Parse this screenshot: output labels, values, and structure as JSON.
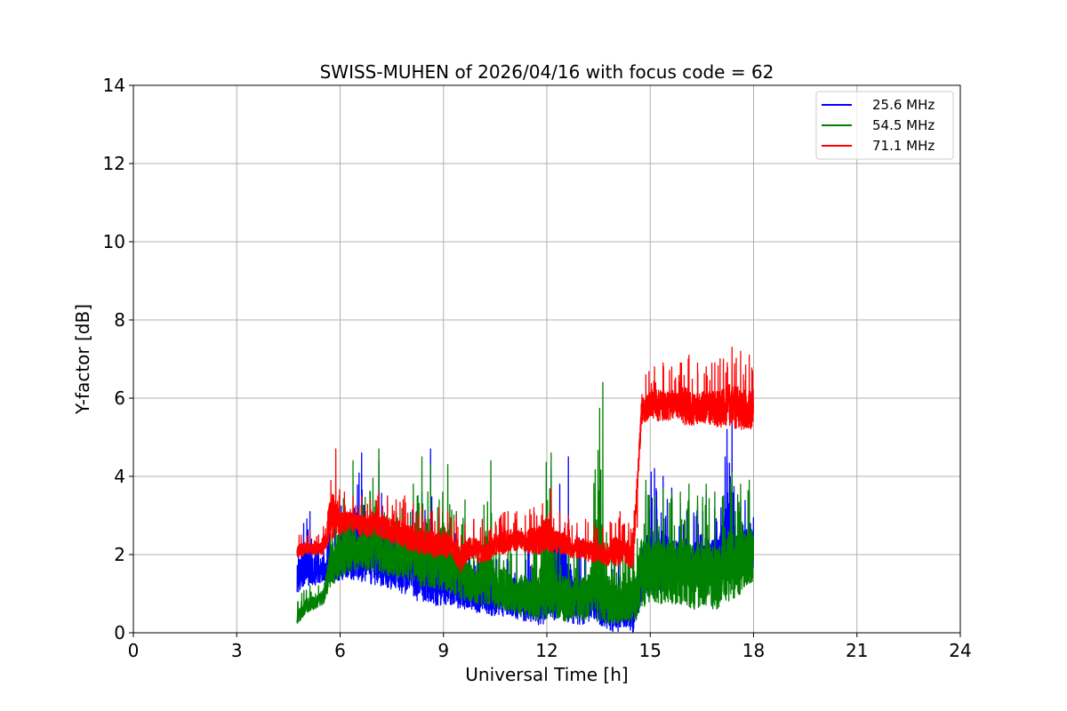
{
  "chart_data": {
    "type": "line",
    "title": "SWISS-MUHEN of 2026/04/16 with focus code = 62",
    "xlabel": "Universal Time [h]",
    "ylabel": "Y-factor [dB]",
    "xlim": [
      0,
      24
    ],
    "ylim": [
      0,
      14
    ],
    "xticks": [
      0,
      3,
      6,
      9,
      12,
      15,
      18,
      21,
      24
    ],
    "yticks": [
      0,
      2,
      4,
      6,
      8,
      10,
      12,
      14
    ],
    "grid": true,
    "legend_position": "top-right",
    "series": [
      {
        "name": "25.6 MHz",
        "color": "#0000ff",
        "x": [
          4.75,
          5.0,
          5.25,
          5.5,
          5.75,
          6.0,
          6.25,
          6.5,
          6.75,
          7.0,
          7.25,
          7.5,
          7.75,
          8.0,
          8.25,
          8.5,
          8.75,
          9.0,
          9.25,
          9.5,
          9.75,
          10.0,
          10.25,
          10.5,
          10.75,
          11.0,
          11.25,
          11.5,
          11.75,
          12.0,
          12.25,
          12.5,
          12.75,
          13.0,
          13.25,
          13.5,
          13.75,
          14.0,
          14.25,
          14.5,
          14.75,
          15.0,
          15.25,
          15.5,
          15.75,
          16.0,
          16.25,
          16.5,
          16.75,
          17.0,
          17.25,
          17.5,
          17.75,
          18.0
        ],
        "min": [
          1.0,
          1.2,
          1.2,
          1.3,
          1.3,
          1.3,
          1.4,
          1.3,
          1.3,
          1.2,
          1.2,
          1.1,
          1.0,
          1.0,
          0.8,
          0.8,
          0.7,
          0.7,
          0.7,
          0.6,
          0.6,
          0.5,
          0.5,
          0.4,
          0.4,
          0.4,
          0.3,
          0.3,
          0.2,
          0.2,
          0.3,
          0.3,
          0.2,
          0.2,
          0.3,
          0.2,
          0.1,
          0.0,
          0.1,
          0.0,
          0.8,
          0.9,
          1.0,
          1.1,
          1.2,
          1.2,
          1.2,
          1.3,
          1.3,
          1.4,
          1.5,
          1.4,
          1.5,
          1.5
        ],
        "max": [
          2.3,
          3.1,
          2.5,
          2.5,
          2.6,
          3.4,
          3.2,
          4.6,
          3.3,
          4.4,
          3.4,
          3.1,
          3.2,
          3.0,
          3.6,
          4.7,
          3.0,
          2.6,
          3.0,
          2.5,
          2.3,
          2.1,
          2.0,
          2.2,
          2.0,
          2.3,
          2.2,
          2.3,
          1.9,
          4.2,
          3.8,
          4.5,
          2.6,
          2.4,
          2.2,
          2.1,
          1.9,
          1.9,
          2.0,
          1.7,
          3.6,
          4.2,
          4.0,
          3.7,
          3.3,
          3.4,
          3.2,
          3.6,
          3.2,
          3.5,
          5.4,
          3.4,
          3.6,
          3.6
        ]
      },
      {
        "name": "54.5 MHz",
        "color": "#008000",
        "x": [
          4.75,
          5.0,
          5.25,
          5.5,
          5.75,
          6.0,
          6.25,
          6.5,
          6.75,
          7.0,
          7.25,
          7.5,
          7.75,
          8.0,
          8.25,
          8.5,
          8.75,
          9.0,
          9.25,
          9.5,
          9.75,
          10.0,
          10.25,
          10.5,
          10.75,
          11.0,
          11.25,
          11.5,
          11.75,
          12.0,
          12.25,
          12.5,
          12.75,
          13.0,
          13.25,
          13.5,
          13.75,
          14.0,
          14.25,
          14.5,
          14.75,
          15.0,
          15.25,
          15.5,
          15.75,
          16.0,
          16.25,
          16.5,
          16.75,
          17.0,
          17.25,
          17.5,
          17.75,
          18.0
        ],
        "min": [
          0.2,
          0.5,
          0.6,
          0.7,
          1.2,
          1.4,
          1.5,
          1.6,
          1.6,
          1.5,
          1.5,
          1.4,
          1.4,
          1.3,
          1.2,
          1.1,
          1.1,
          1.0,
          1.0,
          0.8,
          0.8,
          0.7,
          0.7,
          0.6,
          0.6,
          0.5,
          0.4,
          0.4,
          0.3,
          0.3,
          0.4,
          0.3,
          0.3,
          0.3,
          0.4,
          0.3,
          0.2,
          0.2,
          0.3,
          0.2,
          0.6,
          0.8,
          0.7,
          0.8,
          0.7,
          0.7,
          0.6,
          0.6,
          0.6,
          0.6,
          0.8,
          0.9,
          1.1,
          1.3
        ],
        "max": [
          0.8,
          1.2,
          1.2,
          1.4,
          3.2,
          3.0,
          4.4,
          3.2,
          3.6,
          4.7,
          3.1,
          3.1,
          3.2,
          3.8,
          4.5,
          4.3,
          3.4,
          4.3,
          3.1,
          3.4,
          2.6,
          2.4,
          4.4,
          2.3,
          2.6,
          2.2,
          2.4,
          2.2,
          2.6,
          4.6,
          2.5,
          2.4,
          2.2,
          2.4,
          2.4,
          6.4,
          2.5,
          2.3,
          2.6,
          2.4,
          3.9,
          3.5,
          3.7,
          3.6,
          3.6,
          3.8,
          3.5,
          3.8,
          3.6,
          3.5,
          4.1,
          3.8,
          3.9,
          3.8
        ]
      },
      {
        "name": "71.1 MHz",
        "color": "#ff0000",
        "x": [
          4.75,
          5.0,
          5.25,
          5.5,
          5.75,
          6.0,
          6.25,
          6.5,
          6.75,
          7.0,
          7.25,
          7.5,
          7.75,
          8.0,
          8.25,
          8.5,
          8.75,
          9.0,
          9.25,
          9.5,
          9.75,
          10.0,
          10.25,
          10.5,
          10.75,
          11.0,
          11.25,
          11.5,
          11.75,
          12.0,
          12.25,
          12.5,
          12.75,
          13.0,
          13.25,
          13.5,
          13.75,
          14.0,
          14.25,
          14.5,
          14.75,
          15.0,
          15.25,
          15.5,
          15.75,
          16.0,
          16.25,
          16.5,
          16.75,
          17.0,
          17.25,
          17.5,
          17.75,
          18.0
        ],
        "min": [
          1.9,
          2.0,
          2.0,
          2.0,
          2.4,
          2.5,
          2.6,
          2.5,
          2.4,
          2.5,
          2.4,
          2.3,
          2.2,
          2.1,
          2.0,
          2.0,
          1.9,
          1.9,
          1.9,
          1.5,
          1.9,
          1.8,
          1.8,
          2.0,
          2.0,
          2.1,
          2.1,
          2.0,
          2.0,
          2.1,
          2.0,
          2.0,
          1.9,
          1.9,
          1.8,
          1.8,
          1.7,
          1.7,
          1.8,
          1.6,
          5.3,
          5.5,
          5.4,
          5.4,
          5.5,
          5.3,
          5.3,
          5.4,
          5.3,
          5.2,
          5.3,
          5.2,
          5.2,
          5.2
        ],
        "max": [
          2.5,
          2.6,
          2.5,
          2.6,
          4.7,
          3.6,
          3.5,
          3.5,
          3.4,
          3.6,
          3.5,
          3.4,
          3.5,
          3.3,
          3.2,
          3.1,
          3.2,
          3.1,
          3.0,
          2.8,
          2.9,
          2.9,
          2.7,
          2.9,
          3.1,
          3.1,
          3.0,
          3.2,
          3.3,
          3.7,
          3.1,
          3.0,
          2.8,
          2.9,
          2.8,
          2.7,
          2.8,
          3.1,
          2.8,
          2.7,
          6.6,
          6.8,
          6.9,
          6.8,
          6.9,
          7.1,
          6.9,
          6.8,
          6.9,
          7.0,
          7.3,
          7.2,
          7.1,
          7.1
        ]
      }
    ]
  }
}
